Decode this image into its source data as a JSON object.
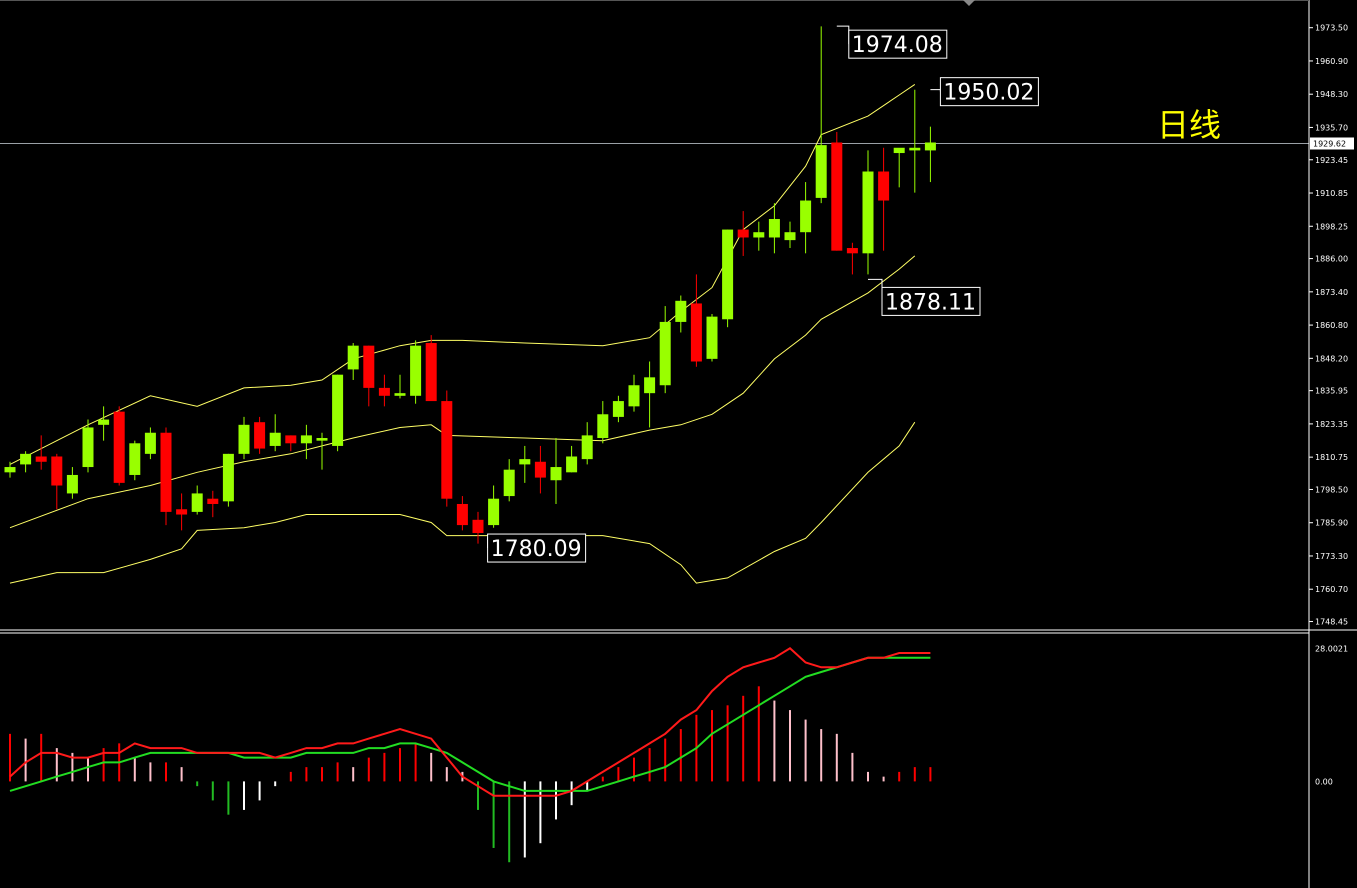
{
  "chart_label": "日线",
  "colors": {
    "background": "#000000",
    "bull": "#99ff00",
    "bear": "#ff0000",
    "bollinger": "#ffff66",
    "macd_fast": "#ff1a1a",
    "macd_signal": "#22dd22",
    "hist_pos_strong": "#ff0000",
    "hist_pos_weak": "#ffc0cb",
    "hist_neg_strong": "#22bb22",
    "hist_neg_weak": "#ffffff",
    "label": "#ffff00",
    "axis": "#ffffff"
  },
  "chart_data": [
    {
      "type": "candlestick",
      "title": "",
      "y_ticks": [
        "1973.50",
        "1960.90",
        "1948.30",
        "1935.70",
        "1923.45",
        "1910.85",
        "1898.25",
        "1886.00",
        "1873.40",
        "1860.80",
        "1848.20",
        "1835.95",
        "1823.35",
        "1810.75",
        "1798.50",
        "1785.90",
        "1773.30",
        "1760.70",
        "1748.45"
      ],
      "ylim": [
        1746,
        1984
      ],
      "current_price": "1929.62",
      "annotations": [
        {
          "text": "1974.08",
          "value": 1974.08,
          "index": 53
        },
        {
          "text": "1950.02",
          "value": 1950.02,
          "index": 59
        },
        {
          "text": "1878.11",
          "value": 1878.11,
          "index": 55
        },
        {
          "text": "1780.09",
          "value": 1780.09,
          "index": 31
        }
      ],
      "candles": [
        [
          1805,
          1809,
          1803,
          1807
        ],
        [
          1808,
          1813,
          1805,
          1812
        ],
        [
          1811,
          1819,
          1806,
          1809
        ],
        [
          1811,
          1812,
          1791,
          1800
        ],
        [
          1797,
          1807,
          1795,
          1804
        ],
        [
          1807,
          1825,
          1805,
          1822
        ],
        [
          1823,
          1830,
          1817,
          1825
        ],
        [
          1828,
          1830,
          1800,
          1801
        ],
        [
          1804,
          1817,
          1802,
          1816
        ],
        [
          1812,
          1822,
          1810,
          1820
        ],
        [
          1820,
          1822,
          1785,
          1790
        ],
        [
          1791,
          1797,
          1783,
          1789
        ],
        [
          1790,
          1800,
          1789,
          1797
        ],
        [
          1795,
          1798,
          1788,
          1793
        ],
        [
          1794,
          1812,
          1792,
          1812
        ],
        [
          1812,
          1826,
          1810,
          1823
        ],
        [
          1824,
          1826,
          1812,
          1814
        ],
        [
          1815,
          1827,
          1813,
          1820
        ],
        [
          1819,
          1819,
          1813,
          1816
        ],
        [
          1816,
          1823,
          1810,
          1819
        ],
        [
          1817,
          1820,
          1806,
          1818
        ],
        [
          1815,
          1842,
          1813,
          1842
        ],
        [
          1844,
          1854,
          1840,
          1853
        ],
        [
          1853,
          1853,
          1830,
          1837
        ],
        [
          1837,
          1842,
          1830,
          1834
        ],
        [
          1834,
          1842,
          1833,
          1835
        ],
        [
          1834,
          1855,
          1831,
          1853
        ],
        [
          1854,
          1857,
          1833,
          1832
        ],
        [
          1832,
          1836,
          1792,
          1795
        ],
        [
          1793,
          1796,
          1783,
          1785
        ],
        [
          1787,
          1790,
          1778,
          1782
        ],
        [
          1785,
          1800,
          1784,
          1795
        ],
        [
          1796,
          1810,
          1794,
          1806
        ],
        [
          1808,
          1815,
          1801,
          1810
        ],
        [
          1809,
          1815,
          1797,
          1803
        ],
        [
          1802,
          1818,
          1793,
          1807
        ],
        [
          1805,
          1815,
          1805,
          1811
        ],
        [
          1810,
          1824,
          1808,
          1819
        ],
        [
          1818,
          1832,
          1816,
          1827
        ],
        [
          1826,
          1834,
          1824,
          1832
        ],
        [
          1830,
          1842,
          1828,
          1838
        ],
        [
          1835,
          1847,
          1822,
          1841
        ],
        [
          1838,
          1868,
          1835,
          1862
        ],
        [
          1862,
          1872,
          1858,
          1870
        ],
        [
          1869,
          1880,
          1845,
          1847
        ],
        [
          1848,
          1865,
          1847,
          1864
        ],
        [
          1863,
          1897,
          1860,
          1897
        ],
        [
          1897,
          1904,
          1887,
          1894
        ],
        [
          1894,
          1900,
          1889,
          1896
        ],
        [
          1894,
          1907,
          1888,
          1901
        ],
        [
          1893,
          1900,
          1890,
          1896
        ],
        [
          1896,
          1915,
          1888,
          1908
        ],
        [
          1909,
          1974,
          1907,
          1929
        ],
        [
          1930,
          1934,
          1889,
          1889
        ],
        [
          1890,
          1892,
          1880,
          1888
        ],
        [
          1888,
          1927,
          1880,
          1919
        ],
        [
          1919,
          1928,
          1889,
          1908
        ],
        [
          1926,
          1927,
          1913,
          1928
        ],
        [
          1927,
          1950,
          1911,
          1928
        ],
        [
          1927,
          1936,
          1915,
          1930
        ]
      ],
      "bollinger": {
        "upper": [
          [
            0,
            1808
          ],
          [
            5,
            1823
          ],
          [
            9,
            1834
          ],
          [
            12,
            1830
          ],
          [
            15,
            1837
          ],
          [
            18,
            1838
          ],
          [
            20,
            1840
          ],
          [
            22,
            1848
          ],
          [
            25,
            1853
          ],
          [
            27,
            1855
          ],
          [
            29,
            1855
          ],
          [
            33,
            1854
          ],
          [
            38,
            1853
          ],
          [
            41,
            1856
          ],
          [
            43,
            1866
          ],
          [
            45,
            1875
          ],
          [
            47,
            1897
          ],
          [
            49,
            1906
          ],
          [
            51,
            1921
          ],
          [
            52,
            1933
          ],
          [
            55,
            1940
          ],
          [
            57,
            1948
          ],
          [
            58,
            1952
          ]
        ],
        "middle": [
          [
            0,
            1784
          ],
          [
            5,
            1795
          ],
          [
            9,
            1800
          ],
          [
            12,
            1805
          ],
          [
            15,
            1809
          ],
          [
            18,
            1812
          ],
          [
            20,
            1815
          ],
          [
            22,
            1818
          ],
          [
            25,
            1822
          ],
          [
            27,
            1823
          ],
          [
            28,
            1819
          ],
          [
            33,
            1818
          ],
          [
            38,
            1817
          ],
          [
            41,
            1821
          ],
          [
            43,
            1823
          ],
          [
            45,
            1827
          ],
          [
            47,
            1835
          ],
          [
            49,
            1848
          ],
          [
            51,
            1857
          ],
          [
            52,
            1863
          ],
          [
            55,
            1873
          ],
          [
            57,
            1882
          ],
          [
            58,
            1887
          ]
        ],
        "lower": [
          [
            0,
            1763
          ],
          [
            3,
            1767
          ],
          [
            6,
            1767
          ],
          [
            9,
            1772
          ],
          [
            11,
            1776
          ],
          [
            12,
            1783
          ],
          [
            15,
            1784
          ],
          [
            17,
            1786
          ],
          [
            19,
            1789
          ],
          [
            22,
            1789
          ],
          [
            25,
            1789
          ],
          [
            27,
            1786
          ],
          [
            28,
            1781
          ],
          [
            33,
            1781
          ],
          [
            38,
            1781
          ],
          [
            41,
            1778
          ],
          [
            43,
            1770
          ],
          [
            44,
            1763
          ],
          [
            46,
            1765
          ],
          [
            49,
            1775
          ],
          [
            51,
            1780
          ],
          [
            52,
            1786
          ],
          [
            55,
            1805
          ],
          [
            57,
            1815
          ],
          [
            58,
            1824
          ]
        ]
      }
    },
    {
      "type": "macd",
      "title": "",
      "y_ticks": [
        "28.0021",
        "0.00"
      ],
      "ylim": [
        -22,
        31
      ],
      "histogram": [
        10,
        9,
        10,
        7,
        6,
        5,
        7,
        8,
        5,
        4,
        4,
        3,
        -1,
        -4,
        -7,
        -6,
        -4,
        -1,
        2,
        3,
        3,
        4,
        3,
        5,
        6,
        7,
        8,
        6,
        3,
        2,
        -6,
        -14,
        -17,
        -16,
        -13,
        -8,
        -5,
        -2,
        1,
        3,
        5,
        7,
        9,
        11,
        14,
        15,
        16,
        18,
        20,
        17,
        15,
        13,
        11,
        10,
        6,
        2,
        1,
        2,
        3,
        3
      ],
      "fast": [
        1,
        4,
        6,
        6,
        5,
        5,
        6,
        6,
        8,
        7,
        7,
        7,
        6,
        6,
        6,
        6,
        6,
        5,
        6,
        7,
        7,
        8,
        8,
        9,
        10,
        11,
        10,
        9,
        5,
        1,
        -1,
        -3,
        -3,
        -3,
        -3,
        -3,
        -2,
        0,
        2,
        4,
        6,
        8,
        10,
        13,
        15,
        19,
        22,
        24,
        25,
        26,
        28,
        25,
        24,
        24,
        25,
        26,
        26,
        27,
        27,
        27
      ],
      "signal": [
        -2,
        -1,
        0,
        1,
        2,
        3,
        4,
        4,
        5,
        6,
        6,
        6,
        6,
        6,
        6,
        5,
        5,
        5,
        5,
        6,
        6,
        6,
        6,
        7,
        7,
        8,
        8,
        7,
        6,
        4,
        2,
        0,
        -1,
        -2,
        -2,
        -2,
        -2,
        -2,
        -1,
        0,
        1,
        2,
        3,
        5,
        7,
        10,
        12,
        14,
        16,
        18,
        20,
        22,
        23,
        24,
        25,
        26,
        26,
        26,
        26,
        26
      ]
    }
  ]
}
